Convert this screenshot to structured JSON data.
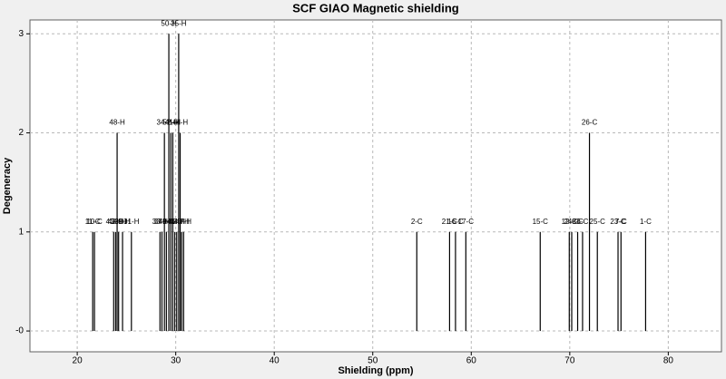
{
  "chart_data": {
    "type": "stick",
    "title": "SCF GIAO Magnetic shielding",
    "xlabel": "Shielding (ppm)",
    "ylabel": "Degeneracy",
    "x": [
      21.57,
      21.75,
      23.7,
      23.9,
      24.05,
      24.2,
      24.6,
      25.5,
      28.4,
      28.6,
      28.85,
      29.05,
      29.3,
      29.5,
      29.7,
      29.9,
      30.1,
      30.3,
      30.45,
      30.6,
      30.8,
      54.47,
      57.8,
      58.4,
      59.45,
      67.0,
      69.95,
      70.2,
      70.8,
      71.3,
      72.0,
      72.8,
      74.9,
      75.2,
      77.7
    ],
    "values": [
      1,
      1,
      1,
      1,
      2,
      1,
      1,
      1,
      1,
      1,
      2,
      1,
      3,
      2,
      2,
      1,
      1,
      3,
      2,
      1,
      1,
      1,
      1,
      1,
      1,
      1,
      1,
      1,
      1,
      1,
      2,
      1,
      1,
      1,
      1
    ],
    "point_labels": [
      "11-C",
      "10-C",
      "45-H",
      "43-H",
      "48-H",
      "38-H",
      "39-H",
      "31-H",
      "33-H",
      "37-H",
      "34-H",
      "49-H",
      "50-H",
      "52-H",
      "41-H",
      "46-H",
      "42-H",
      "35-H",
      "44-H",
      "40-H",
      "47-H",
      "2-C",
      "21-C",
      "16-C",
      "17-C",
      "15-C",
      "12-C",
      "24-C",
      "8-C",
      "6-C",
      "26-C",
      "25-C",
      "23-C",
      "7-C",
      "1-C"
    ],
    "color": "#000000",
    "xlim": [
      15.2,
      85.4
    ],
    "xticks": [
      20,
      30,
      40,
      50,
      60,
      70,
      80
    ],
    "ylim": [
      -0.21,
      3.14
    ],
    "yticks": [
      {
        "value": 0,
        "label": "-0"
      },
      1,
      2,
      3
    ],
    "grid": true
  }
}
